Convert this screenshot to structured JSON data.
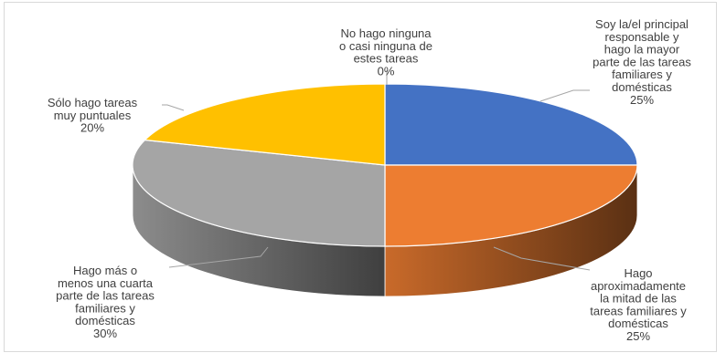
{
  "chart_data": {
    "type": "pie",
    "three_d": true,
    "legend": "none",
    "slices": [
      {
        "label_lines": [
          "Soy la/el principal",
          "responsable y",
          "hago la mayor",
          "parte de las tareas",
          "familiares y",
          "domésticas"
        ],
        "pct_text": "25%",
        "value": 25,
        "color": "#4472c4"
      },
      {
        "label_lines": [
          "Hago",
          "aproximadamente",
          "la mitad de las",
          "tareas familiares y",
          "domésticas"
        ],
        "pct_text": "25%",
        "value": 25,
        "color": "#ed7d31"
      },
      {
        "label_lines": [
          "Hago más o",
          "menos una cuarta",
          "parte de las tareas",
          "familiares y",
          "domésticas"
        ],
        "pct_text": "30%",
        "value": 30,
        "color": "#a5a5a5"
      },
      {
        "label_lines": [
          "Sólo hago tareas",
          "muy puntuales"
        ],
        "pct_text": "20%",
        "value": 20,
        "color": "#ffc000"
      },
      {
        "label_lines": [
          "No hago ninguna",
          "o casi ninguna de",
          "estes tareas"
        ],
        "pct_text": "0%",
        "value": 0,
        "color": "#5b9bd5"
      }
    ]
  }
}
